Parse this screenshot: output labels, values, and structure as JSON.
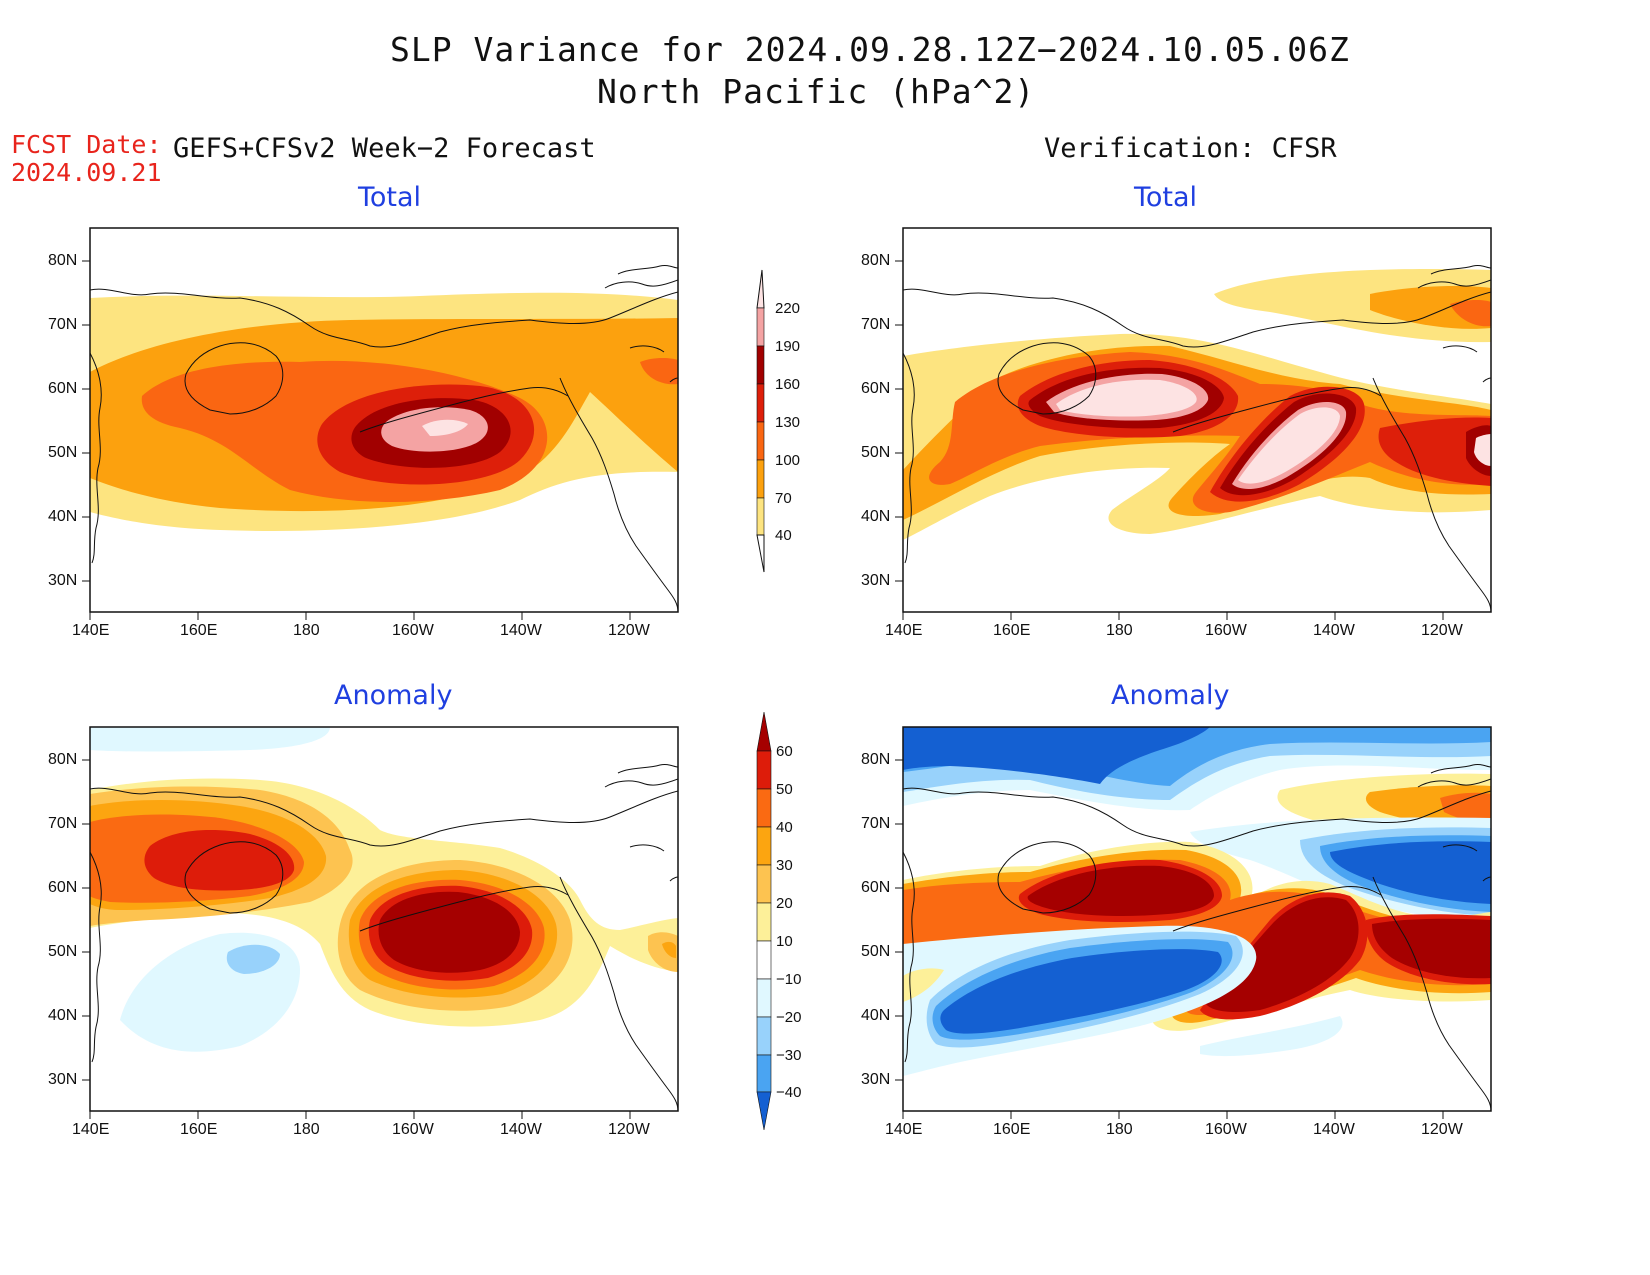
{
  "title": {
    "line1": "SLP Variance for 2024.09.28.12Z−2024.10.05.06Z",
    "line2": "North Pacific (hPa^2)"
  },
  "fcst": {
    "label": "FCST Date:",
    "date": "2024.09.21"
  },
  "left_header": "GEFS+CFSv2 Week−2 Forecast",
  "right_header": "Verification: CFSR",
  "panels": {
    "top_left": {
      "subtitle": "Total"
    },
    "top_right": {
      "subtitle": "Total"
    },
    "bottom_left": {
      "subtitle": "Anomaly"
    },
    "bottom_right": {
      "subtitle": "Anomaly"
    }
  },
  "axes": {
    "lon_labels": [
      "140E",
      "160E",
      "180",
      "160W",
      "140W",
      "120W"
    ],
    "lat_labels": [
      "80N",
      "70N",
      "60N",
      "50N",
      "40N",
      "30N"
    ]
  },
  "colorbars": {
    "total": {
      "labels": [
        "220",
        "190",
        "160",
        "130",
        "100",
        "70",
        "40"
      ],
      "colors": [
        "#fde3e3",
        "#f4a3a3",
        "#a10000",
        "#dd1f0a",
        "#fa6612",
        "#fca10e",
        "#fde480",
        "#ffffff"
      ]
    },
    "anomaly": {
      "labels": [
        "60",
        "50",
        "40",
        "30",
        "20",
        "10",
        "−10",
        "−20",
        "−30",
        "−40"
      ],
      "colors": [
        "#a50000",
        "#dd1c0a",
        "#fa6a12",
        "#fca510",
        "#fdc350",
        "#fdf099",
        "#ffffff",
        "#e0f8ff",
        "#98d2fb",
        "#4aa4f2",
        "#1460d2"
      ]
    }
  },
  "colors": {
    "land": "#111111",
    "title_blue": "#1f3fe0",
    "fcst_red": "#e8241c"
  }
}
